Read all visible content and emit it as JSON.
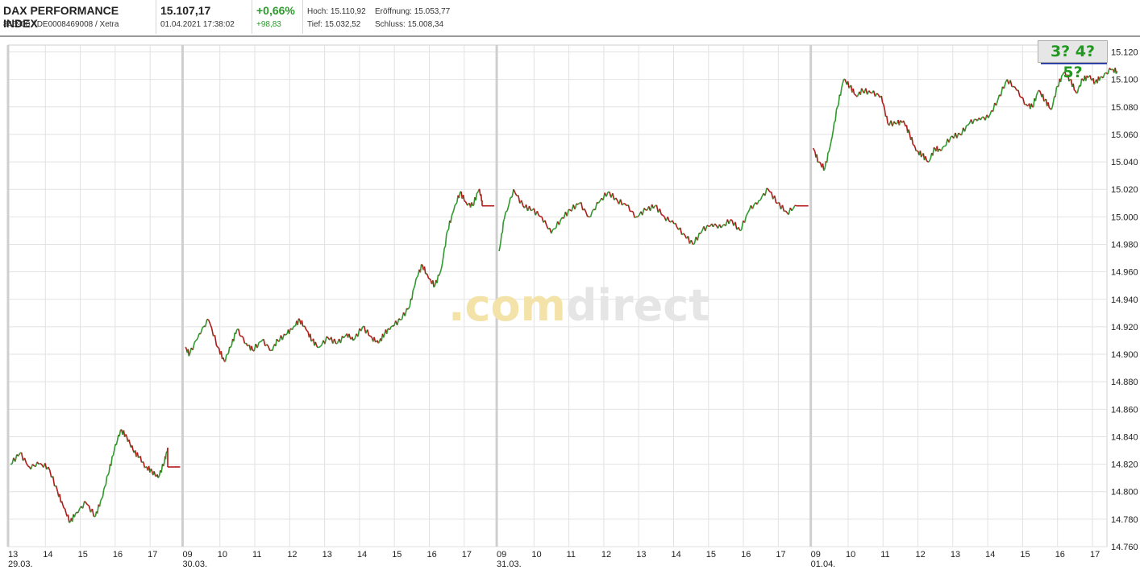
{
  "header": {
    "name": "DAX PERFORMANCE INDEX",
    "ids": "846900 / DE0008469008 / Xetra",
    "price": "15.107,17",
    "datetime": "01.04.2021 17:38:02",
    "change_pct": "+0,66%",
    "change_abs": "+98,83",
    "high": "Hoch: 15.110,92",
    "low": "Tief: 15.032,52",
    "open": "Eröffnung: 15.053,77",
    "close": "Schluss: 15.008,34"
  },
  "badge": {
    "text": "3? 4? 5?"
  },
  "watermark": {
    "part1": ".com",
    "part2": "direct"
  },
  "colors": {
    "up": "#2e9a2e",
    "down": "#b01818",
    "grid": "#e2e2e2",
    "session_sep": "#cfcfcf",
    "badge_line": "#1a2fa0"
  },
  "chart_data": {
    "type": "line",
    "title": "DAX PERFORMANCE INDEX",
    "xlabel": "",
    "ylabel": "",
    "ylim": [
      14760,
      15125
    ],
    "y_ticks": [
      "15.120",
      "15.100",
      "15.080",
      "15.060",
      "15.040",
      "15.020",
      "15.000",
      "14.980",
      "14.960",
      "14.940",
      "14.920",
      "14.900",
      "14.880",
      "14.860",
      "14.840",
      "14.820",
      "14.800",
      "14.780",
      "14.760"
    ],
    "y_tick_values": [
      15120,
      15100,
      15080,
      15060,
      15040,
      15020,
      15000,
      14980,
      14960,
      14940,
      14920,
      14900,
      14880,
      14860,
      14840,
      14820,
      14800,
      14780,
      14760
    ],
    "x_ticks": [
      {
        "label": "13",
        "date": "29.03.",
        "t": 0.0
      },
      {
        "label": "14",
        "t": 0.111
      },
      {
        "label": "15",
        "t": 0.222
      },
      {
        "label": "16",
        "t": 0.333
      },
      {
        "label": "17",
        "t": 0.444
      },
      {
        "label": "09",
        "date": "30.03.",
        "t": 0.555
      },
      {
        "label": "10",
        "t": 0.666
      },
      {
        "label": "11",
        "t": 0.777
      },
      {
        "label": "12",
        "t": 0.888
      },
      {
        "label": "13",
        "t": 0.999
      },
      {
        "label": "14",
        "t": 1.11
      },
      {
        "label": "15",
        "t": 1.221
      },
      {
        "label": "16",
        "t": 1.332
      },
      {
        "label": "17",
        "t": 1.443
      },
      {
        "label": "09",
        "date": "31.03.",
        "t": 1.554
      },
      {
        "label": "10",
        "t": 1.665
      },
      {
        "label": "11",
        "t": 1.776
      },
      {
        "label": "12",
        "t": 1.887
      },
      {
        "label": "13",
        "t": 1.998
      },
      {
        "label": "14",
        "t": 2.109
      },
      {
        "label": "15",
        "t": 2.22
      },
      {
        "label": "16",
        "t": 2.331
      },
      {
        "label": "17",
        "t": 2.442
      },
      {
        "label": "09",
        "date": "01.04.",
        "t": 2.553
      },
      {
        "label": "10",
        "t": 2.664
      },
      {
        "label": "11",
        "t": 2.775
      },
      {
        "label": "12",
        "t": 2.886
      },
      {
        "label": "13",
        "t": 2.997
      },
      {
        "label": "14",
        "t": 3.108
      },
      {
        "label": "15",
        "t": 3.219
      },
      {
        "label": "16",
        "t": 3.33
      },
      {
        "label": "17",
        "t": 3.441
      }
    ],
    "sessions": [
      {
        "date": "29.03.",
        "t_start": 0.0,
        "t_end": 0.5,
        "t_flat_end": 0.555,
        "points": [
          [
            0,
            14820
          ],
          [
            0.03,
            14828
          ],
          [
            0.06,
            14818
          ],
          [
            0.09,
            14820
          ],
          [
            0.12,
            14818
          ],
          [
            0.15,
            14800
          ],
          [
            0.17,
            14788
          ],
          [
            0.19,
            14778
          ],
          [
            0.21,
            14785
          ],
          [
            0.24,
            14792
          ],
          [
            0.27,
            14782
          ],
          [
            0.29,
            14795
          ],
          [
            0.31,
            14812
          ],
          [
            0.33,
            14830
          ],
          [
            0.35,
            14845
          ],
          [
            0.37,
            14840
          ],
          [
            0.39,
            14830
          ],
          [
            0.41,
            14825
          ],
          [
            0.43,
            14818
          ],
          [
            0.45,
            14815
          ],
          [
            0.47,
            14810
          ],
          [
            0.49,
            14822
          ],
          [
            0.5,
            14832
          ]
        ],
        "flat": 14818
      },
      {
        "date": "30.03.",
        "t_start": 0.555,
        "t_end": 1.5,
        "t_flat_end": 1.554,
        "points": [
          [
            0.555,
            14905
          ],
          [
            0.57,
            14900
          ],
          [
            0.6,
            14915
          ],
          [
            0.63,
            14925
          ],
          [
            0.66,
            14905
          ],
          [
            0.68,
            14895
          ],
          [
            0.7,
            14905
          ],
          [
            0.72,
            14918
          ],
          [
            0.75,
            14908
          ],
          [
            0.77,
            14903
          ],
          [
            0.8,
            14910
          ],
          [
            0.83,
            14903
          ],
          [
            0.85,
            14910
          ],
          [
            0.88,
            14915
          ],
          [
            0.9,
            14920
          ],
          [
            0.92,
            14925
          ],
          [
            0.94,
            14918
          ],
          [
            0.96,
            14910
          ],
          [
            0.98,
            14905
          ],
          [
            1.01,
            14912
          ],
          [
            1.04,
            14908
          ],
          [
            1.07,
            14915
          ],
          [
            1.09,
            14910
          ],
          [
            1.12,
            14920
          ],
          [
            1.15,
            14912
          ],
          [
            1.17,
            14908
          ],
          [
            1.19,
            14915
          ],
          [
            1.21,
            14920
          ],
          [
            1.24,
            14925
          ],
          [
            1.27,
            14935
          ],
          [
            1.29,
            14955
          ],
          [
            1.31,
            14965
          ],
          [
            1.33,
            14955
          ],
          [
            1.35,
            14950
          ],
          [
            1.37,
            14962
          ],
          [
            1.39,
            14990
          ],
          [
            1.41,
            15005
          ],
          [
            1.43,
            15018
          ],
          [
            1.45,
            15010
          ],
          [
            1.47,
            15008
          ],
          [
            1.49,
            15020
          ],
          [
            1.5,
            15012
          ]
        ],
        "flat": 15008
      },
      {
        "date": "31.03.",
        "t_start": 1.554,
        "t_end": 2.5,
        "t_flat_end": 2.553,
        "points": [
          [
            1.554,
            14975
          ],
          [
            1.57,
            14998
          ],
          [
            1.6,
            15020
          ],
          [
            1.63,
            15008
          ],
          [
            1.66,
            15005
          ],
          [
            1.69,
            15000
          ],
          [
            1.72,
            14988
          ],
          [
            1.75,
            14998
          ],
          [
            1.78,
            15005
          ],
          [
            1.81,
            15010
          ],
          [
            1.84,
            15000
          ],
          [
            1.87,
            15010
          ],
          [
            1.9,
            15018
          ],
          [
            1.93,
            15012
          ],
          [
            1.96,
            15008
          ],
          [
            1.99,
            15000
          ],
          [
            2.02,
            15005
          ],
          [
            2.05,
            15008
          ],
          [
            2.08,
            15000
          ],
          [
            2.11,
            14995
          ],
          [
            2.14,
            14988
          ],
          [
            2.17,
            14980
          ],
          [
            2.2,
            14990
          ],
          [
            2.23,
            14995
          ],
          [
            2.26,
            14992
          ],
          [
            2.29,
            14998
          ],
          [
            2.32,
            14990
          ],
          [
            2.35,
            15005
          ],
          [
            2.38,
            15012
          ],
          [
            2.41,
            15020
          ],
          [
            2.44,
            15010
          ],
          [
            2.47,
            15003
          ],
          [
            2.5,
            15008
          ]
        ],
        "flat": 15008
      },
      {
        "date": "01.04.",
        "t_start": 2.553,
        "t_end": 3.52,
        "points": [
          [
            2.553,
            15050
          ],
          [
            2.57,
            15040
          ],
          [
            2.59,
            15035
          ],
          [
            2.61,
            15055
          ],
          [
            2.63,
            15080
          ],
          [
            2.65,
            15100
          ],
          [
            2.67,
            15095
          ],
          [
            2.69,
            15088
          ],
          [
            2.71,
            15092
          ],
          [
            2.74,
            15090
          ],
          [
            2.77,
            15088
          ],
          [
            2.79,
            15068
          ],
          [
            2.82,
            15068
          ],
          [
            2.84,
            15070
          ],
          [
            2.86,
            15060
          ],
          [
            2.88,
            15048
          ],
          [
            2.9,
            15045
          ],
          [
            2.92,
            15040
          ],
          [
            2.94,
            15050
          ],
          [
            2.96,
            15048
          ],
          [
            2.99,
            15058
          ],
          [
            3.02,
            15060
          ],
          [
            3.05,
            15068
          ],
          [
            3.08,
            15072
          ],
          [
            3.11,
            15072
          ],
          [
            3.14,
            15085
          ],
          [
            3.17,
            15100
          ],
          [
            3.2,
            15092
          ],
          [
            3.23,
            15082
          ],
          [
            3.25,
            15080
          ],
          [
            3.27,
            15092
          ],
          [
            3.29,
            15085
          ],
          [
            3.31,
            15078
          ],
          [
            3.33,
            15095
          ],
          [
            3.35,
            15105
          ],
          [
            3.37,
            15100
          ],
          [
            3.39,
            15090
          ],
          [
            3.41,
            15100
          ],
          [
            3.43,
            15102
          ],
          [
            3.45,
            15098
          ],
          [
            3.47,
            15102
          ],
          [
            3.5,
            15107
          ],
          [
            3.52,
            15106
          ]
        ]
      }
    ],
    "annotations": [
      {
        "text": "3? 4? 5?",
        "level": 15112
      }
    ]
  }
}
